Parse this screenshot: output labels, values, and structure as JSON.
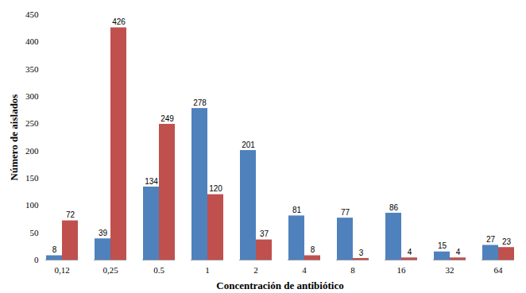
{
  "chart_data": {
    "type": "bar",
    "x_label": "Concentración de antibiótico",
    "y_label": "Número de aislados",
    "categories": [
      "0,12",
      "0,25",
      "0.5",
      "1",
      "2",
      "4",
      "8",
      "16",
      "32",
      "64"
    ],
    "series": [
      {
        "color": "#4f81bd",
        "values": [
          8,
          39,
          134,
          278,
          201,
          81,
          77,
          86,
          15,
          27
        ]
      },
      {
        "color": "#c0504d",
        "values": [
          72,
          426,
          249,
          120,
          37,
          8,
          3,
          4,
          4,
          23
        ]
      }
    ],
    "ylim": [
      0,
      450
    ],
    "yticks": [
      0,
      50,
      100,
      150,
      200,
      250,
      300,
      350,
      400,
      450
    ],
    "grid": false,
    "data_labels": true
  }
}
